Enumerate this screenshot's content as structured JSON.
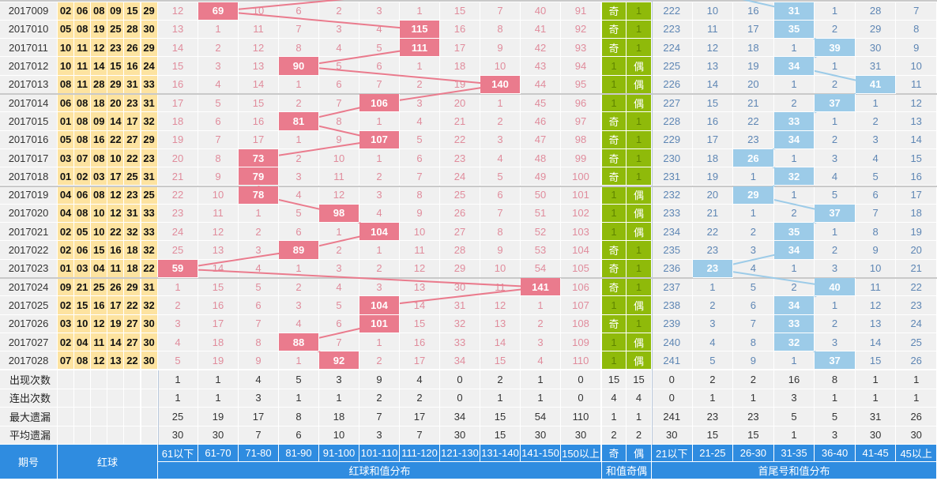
{
  "colors": {
    "sum_hit": "#ea7b8d",
    "tail_hit": "#9ccbe8",
    "odd_even": "#8fba0a",
    "header": "#2f8ce0",
    "ball_bg": "#fde3a0"
  },
  "rows": [
    {
      "period": "2017009",
      "balls": [
        "02",
        "06",
        "08",
        "09",
        "15",
        "29"
      ],
      "sum": [
        12,
        69,
        10,
        6,
        2,
        3,
        1,
        15,
        7,
        40,
        91
      ],
      "sum_hit": 1,
      "oe": [
        "奇",
        "1"
      ],
      "tail": [
        222,
        10,
        16,
        31,
        1,
        28,
        7
      ],
      "tail_hit": 3
    },
    {
      "period": "2017010",
      "balls": [
        "05",
        "08",
        "19",
        "25",
        "28",
        "30"
      ],
      "sum": [
        13,
        1,
        11,
        7,
        3,
        4,
        115,
        16,
        8,
        41,
        92
      ],
      "sum_hit": 6,
      "oe": [
        "奇",
        "1"
      ],
      "tail": [
        223,
        11,
        17,
        35,
        2,
        29,
        8
      ],
      "tail_hit": 3
    },
    {
      "period": "2017011",
      "balls": [
        "10",
        "11",
        "12",
        "23",
        "26",
        "29"
      ],
      "sum": [
        14,
        2,
        12,
        8,
        4,
        5,
        111,
        17,
        9,
        42,
        93
      ],
      "sum_hit": 6,
      "oe": [
        "奇",
        "1"
      ],
      "tail": [
        224,
        12,
        18,
        1,
        39,
        30,
        9
      ],
      "tail_hit": 4
    },
    {
      "period": "2017012",
      "balls": [
        "10",
        "11",
        "14",
        "15",
        "16",
        "24"
      ],
      "sum": [
        15,
        3,
        13,
        90,
        5,
        6,
        1,
        18,
        10,
        43,
        94
      ],
      "sum_hit": 3,
      "oe": [
        "1",
        "偶"
      ],
      "tail": [
        225,
        13,
        19,
        34,
        1,
        31,
        10
      ],
      "tail_hit": 3
    },
    {
      "period": "2017013",
      "balls": [
        "08",
        "11",
        "28",
        "29",
        "31",
        "33"
      ],
      "sum": [
        16,
        4,
        14,
        1,
        6,
        7,
        2,
        19,
        140,
        44,
        95
      ],
      "sum_hit": 8,
      "oe": [
        "1",
        "偶"
      ],
      "tail": [
        226,
        14,
        20,
        1,
        2,
        41,
        11
      ],
      "tail_hit": 5
    },
    {
      "period": "2017014",
      "balls": [
        "06",
        "08",
        "18",
        "20",
        "23",
        "31"
      ],
      "sum": [
        17,
        5,
        15,
        2,
        7,
        106,
        3,
        20,
        1,
        45,
        96
      ],
      "sum_hit": 5,
      "oe": [
        "1",
        "偶"
      ],
      "tail": [
        227,
        15,
        21,
        2,
        37,
        1,
        12
      ],
      "tail_hit": 4
    },
    {
      "period": "2017015",
      "balls": [
        "01",
        "08",
        "09",
        "14",
        "17",
        "32"
      ],
      "sum": [
        18,
        6,
        16,
        81,
        8,
        1,
        4,
        21,
        2,
        46,
        97
      ],
      "sum_hit": 3,
      "oe": [
        "奇",
        "1"
      ],
      "tail": [
        228,
        16,
        22,
        33,
        1,
        2,
        13
      ],
      "tail_hit": 3
    },
    {
      "period": "2017016",
      "balls": [
        "05",
        "08",
        "16",
        "22",
        "27",
        "29"
      ],
      "sum": [
        19,
        7,
        17,
        1,
        9,
        107,
        5,
        22,
        3,
        47,
        98
      ],
      "sum_hit": 5,
      "oe": [
        "奇",
        "1"
      ],
      "tail": [
        229,
        17,
        23,
        34,
        2,
        3,
        14
      ],
      "tail_hit": 3
    },
    {
      "period": "2017017",
      "balls": [
        "03",
        "07",
        "08",
        "10",
        "22",
        "23"
      ],
      "sum": [
        20,
        8,
        73,
        2,
        10,
        1,
        6,
        23,
        4,
        48,
        99
      ],
      "sum_hit": 2,
      "oe": [
        "奇",
        "1"
      ],
      "tail": [
        230,
        18,
        26,
        1,
        3,
        4,
        15
      ],
      "tail_hit": 2
    },
    {
      "period": "2017018",
      "balls": [
        "01",
        "02",
        "03",
        "17",
        "25",
        "31"
      ],
      "sum": [
        21,
        9,
        79,
        3,
        11,
        2,
        7,
        24,
        5,
        49,
        100
      ],
      "sum_hit": 2,
      "oe": [
        "奇",
        "1"
      ],
      "tail": [
        231,
        19,
        1,
        32,
        4,
        5,
        16
      ],
      "tail_hit": 3
    },
    {
      "period": "2017019",
      "balls": [
        "04",
        "06",
        "08",
        "12",
        "23",
        "25"
      ],
      "sum": [
        22,
        10,
        78,
        4,
        12,
        3,
        8,
        25,
        6,
        50,
        101
      ],
      "sum_hit": 2,
      "oe": [
        "1",
        "偶"
      ],
      "tail": [
        232,
        20,
        29,
        1,
        5,
        6,
        17
      ],
      "tail_hit": 2
    },
    {
      "period": "2017020",
      "balls": [
        "04",
        "08",
        "10",
        "12",
        "31",
        "33"
      ],
      "sum": [
        23,
        11,
        1,
        5,
        98,
        4,
        9,
        26,
        7,
        51,
        102
      ],
      "sum_hit": 4,
      "oe": [
        "1",
        "偶"
      ],
      "tail": [
        233,
        21,
        1,
        2,
        37,
        7,
        18
      ],
      "tail_hit": 4
    },
    {
      "period": "2017021",
      "balls": [
        "02",
        "05",
        "10",
        "22",
        "32",
        "33"
      ],
      "sum": [
        24,
        12,
        2,
        6,
        1,
        104,
        10,
        27,
        8,
        52,
        103
      ],
      "sum_hit": 5,
      "oe": [
        "1",
        "偶"
      ],
      "tail": [
        234,
        22,
        2,
        35,
        1,
        8,
        19
      ],
      "tail_hit": 3
    },
    {
      "period": "2017022",
      "balls": [
        "02",
        "06",
        "15",
        "16",
        "18",
        "32"
      ],
      "sum": [
        25,
        13,
        3,
        89,
        2,
        1,
        11,
        28,
        9,
        53,
        104
      ],
      "sum_hit": 3,
      "oe": [
        "奇",
        "1"
      ],
      "tail": [
        235,
        23,
        3,
        34,
        2,
        9,
        20
      ],
      "tail_hit": 3
    },
    {
      "period": "2017023",
      "balls": [
        "01",
        "03",
        "04",
        "11",
        "18",
        "22"
      ],
      "sum": [
        59,
        14,
        4,
        1,
        3,
        2,
        12,
        29,
        10,
        54,
        105
      ],
      "sum_hit": 0,
      "oe": [
        "奇",
        "1"
      ],
      "tail": [
        236,
        23,
        4,
        1,
        3,
        10,
        21
      ],
      "tail_hit": 1
    },
    {
      "period": "2017024",
      "balls": [
        "09",
        "21",
        "25",
        "26",
        "29",
        "31"
      ],
      "sum": [
        1,
        15,
        5,
        2,
        4,
        3,
        13,
        30,
        11,
        141,
        106
      ],
      "sum_hit": 9,
      "oe": [
        "奇",
        "1"
      ],
      "tail": [
        237,
        1,
        5,
        2,
        40,
        11,
        22
      ],
      "tail_hit": 4
    },
    {
      "period": "2017025",
      "balls": [
        "02",
        "15",
        "16",
        "17",
        "22",
        "32"
      ],
      "sum": [
        2,
        16,
        6,
        3,
        5,
        104,
        14,
        31,
        12,
        1,
        107
      ],
      "sum_hit": 5,
      "oe": [
        "1",
        "偶"
      ],
      "tail": [
        238,
        2,
        6,
        34,
        1,
        12,
        23
      ],
      "tail_hit": 3
    },
    {
      "period": "2017026",
      "balls": [
        "03",
        "10",
        "12",
        "19",
        "27",
        "30"
      ],
      "sum": [
        3,
        17,
        7,
        4,
        6,
        101,
        15,
        32,
        13,
        2,
        108
      ],
      "sum_hit": 5,
      "oe": [
        "奇",
        "1"
      ],
      "tail": [
        239,
        3,
        7,
        33,
        2,
        13,
        24
      ],
      "tail_hit": 3
    },
    {
      "period": "2017027",
      "balls": [
        "02",
        "04",
        "11",
        "14",
        "27",
        "30"
      ],
      "sum": [
        4,
        18,
        8,
        88,
        7,
        1,
        16,
        33,
        14,
        3,
        109
      ],
      "sum_hit": 3,
      "oe": [
        "1",
        "偶"
      ],
      "tail": [
        240,
        4,
        8,
        32,
        3,
        14,
        25
      ],
      "tail_hit": 3
    },
    {
      "period": "2017028",
      "balls": [
        "07",
        "08",
        "12",
        "13",
        "22",
        "30"
      ],
      "sum": [
        5,
        19,
        9,
        1,
        92,
        2,
        17,
        34,
        15,
        4,
        110
      ],
      "sum_hit": 4,
      "oe": [
        "1",
        "偶"
      ],
      "tail": [
        241,
        5,
        9,
        1,
        37,
        15,
        26
      ],
      "tail_hit": 4
    }
  ],
  "stats": [
    {
      "label": "出现次数",
      "sum": [
        1,
        1,
        4,
        5,
        3,
        9,
        4,
        0,
        2,
        1,
        0
      ],
      "oe": [
        15,
        15
      ],
      "tail": [
        0,
        2,
        2,
        16,
        8,
        1,
        1
      ]
    },
    {
      "label": "连出次数",
      "sum": [
        1,
        1,
        3,
        1,
        1,
        2,
        2,
        0,
        1,
        1,
        0
      ],
      "oe": [
        4,
        4
      ],
      "tail": [
        0,
        1,
        1,
        3,
        1,
        1,
        1
      ]
    },
    {
      "label": "最大遗漏",
      "sum": [
        25,
        19,
        17,
        8,
        18,
        7,
        17,
        34,
        15,
        54,
        110
      ],
      "oe": [
        1,
        1
      ],
      "tail": [
        241,
        23,
        23,
        5,
        5,
        31,
        26
      ]
    },
    {
      "label": "平均遗漏",
      "sum": [
        30,
        30,
        7,
        6,
        10,
        3,
        7,
        30,
        15,
        30,
        30
      ],
      "oe": [
        2,
        2
      ],
      "tail": [
        30,
        15,
        15,
        1,
        3,
        30,
        30
      ]
    }
  ],
  "header": {
    "period": "期号",
    "red_ball": "红球",
    "sum_buckets": [
      "61以下",
      "61-70",
      "71-80",
      "81-90",
      "91-100",
      "101-110",
      "111-120",
      "121-130",
      "131-140",
      "141-150",
      "150以上"
    ],
    "sum_group": "红球和值分布",
    "oe_buckets": [
      "奇",
      "偶"
    ],
    "oe_group": "和值奇偶",
    "tail_buckets": [
      "21以下",
      "21-25",
      "26-30",
      "31-35",
      "36-40",
      "41-45",
      "45以上"
    ],
    "tail_group": "首尾号和值分布"
  }
}
